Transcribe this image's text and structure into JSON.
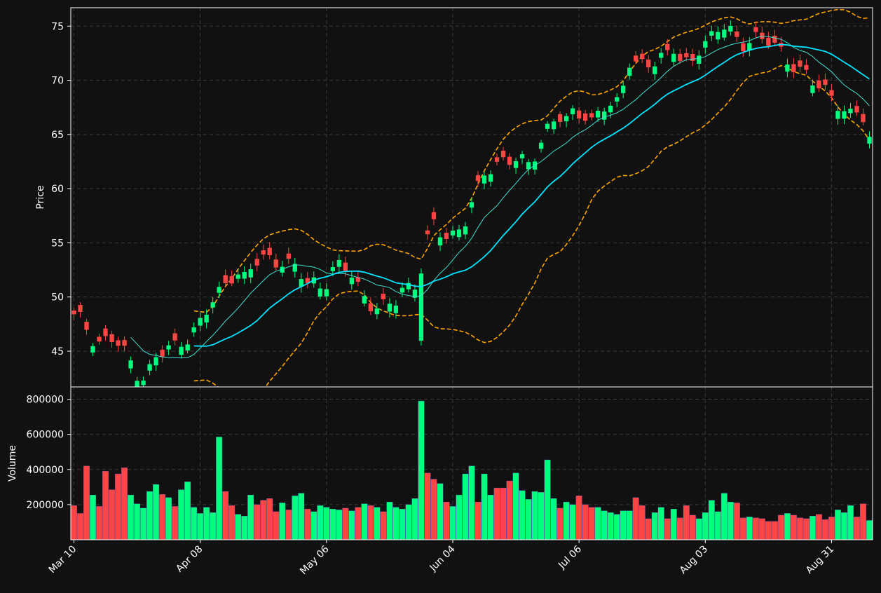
{
  "chart_data": [
    {
      "panel": "price",
      "type": "candlestick",
      "ylabel": "Price",
      "ylim": [
        41.7,
        76.7
      ],
      "yticks": [
        45,
        50,
        55,
        60,
        65,
        70,
        75
      ],
      "grid": true,
      "series": [
        {
          "kind": "ohlc",
          "color_up": "#00ff7f",
          "color_down": "#ff4444"
        },
        {
          "kind": "line",
          "color": "#40e0d0",
          "description_source": "moving average (thin)"
        },
        {
          "kind": "line",
          "color": "#00e5ff",
          "description_source": "moving average (thick)"
        },
        {
          "kind": "band-upper",
          "color": "#ffa500",
          "style": "dashed"
        },
        {
          "kind": "band-lower",
          "color": "#ffa500",
          "style": "dashed"
        }
      ],
      "key_prices": [
        48.1,
        47.8,
        46.3,
        45.8,
        46.2,
        45.5,
        44.5,
        43.1,
        42.5,
        44.2,
        44.8,
        45.4,
        46.0,
        46.4,
        47.4,
        48.8,
        50.1,
        51.6,
        52.3,
        51.5,
        52.8,
        53.6,
        53.8,
        53.2,
        52.8,
        52.6,
        51.3,
        51.6,
        50.9,
        52.3,
        52.9,
        52.3,
        50.9,
        49.4,
        48.7,
        49.1,
        49.8,
        51.3,
        50.8,
        52.6,
        57.0,
        56.1,
        55.6,
        56.2,
        57.0,
        59.6,
        61.8,
        62.2,
        62.6,
        62.4,
        62.5,
        62.5,
        64.0,
        65.5,
        66.5,
        66.1,
        67.4,
        67.0,
        66.0,
        67.3,
        67.5,
        68.2,
        72.0,
        71.4,
        71.2,
        71.5,
        72.5,
        73.4,
        71.5,
        71.2,
        72.8,
        74.0,
        75.0,
        75.1,
        73.5,
        73.0,
        74.3,
        74.0,
        73.6,
        72.4,
        71.4,
        71.3,
        70.8,
        69.5,
        68.8,
        68.2,
        67.5,
        67.0,
        67.3,
        64.2
      ]
    },
    {
      "panel": "volume",
      "type": "bar",
      "ylabel": "Volume",
      "ylim": [
        0,
        870000
      ],
      "yticks": [
        200000,
        400000,
        600000,
        800000
      ],
      "grid": true,
      "color_up": "#00ff7f",
      "color_down": "#ff4444",
      "values": [
        195000,
        150000,
        420000,
        255000,
        190000,
        390000,
        285000,
        375000,
        410000,
        255000,
        205000,
        180000,
        275000,
        315000,
        258000,
        240000,
        190000,
        285000,
        330000,
        185000,
        150000,
        185000,
        155000,
        585000,
        275000,
        195000,
        145000,
        135000,
        255000,
        200000,
        225000,
        235000,
        160000,
        210000,
        170000,
        250000,
        265000,
        175000,
        160000,
        195000,
        185000,
        175000,
        170000,
        180000,
        165000,
        185000,
        205000,
        195000,
        185000,
        160000,
        215000,
        185000,
        175000,
        200000,
        235000,
        790000,
        380000,
        345000,
        320000,
        215000,
        190000,
        255000,
        375000,
        420000,
        215000,
        375000,
        255000,
        295000,
        295000,
        335000,
        380000,
        280000,
        230000,
        275000,
        270000,
        455000,
        235000,
        180000,
        215000,
        200000,
        250000,
        200000,
        185000,
        185000,
        165000,
        155000,
        145000,
        165000,
        165000,
        240000,
        195000,
        120000,
        155000,
        185000,
        120000,
        175000,
        125000,
        195000,
        140000,
        120000,
        155000,
        225000,
        160000,
        265000,
        215000,
        210000,
        125000,
        130000,
        125000,
        120000,
        105000,
        105000,
        140000,
        150000,
        140000,
        125000,
        120000,
        135000,
        145000,
        115000,
        130000,
        170000,
        155000,
        195000,
        130000,
        205000,
        110000
      ],
      "up": [
        false,
        false,
        false,
        true,
        false,
        false,
        false,
        false,
        false,
        true,
        true,
        true,
        true,
        true,
        false,
        true,
        false,
        true,
        true,
        true,
        true,
        true,
        true,
        true,
        false,
        false,
        true,
        true,
        true,
        false,
        false,
        false,
        false,
        true,
        false,
        true,
        true,
        false,
        true,
        true,
        true,
        true,
        true,
        false,
        true,
        false,
        true,
        false,
        true,
        false,
        true,
        true,
        true,
        true,
        true,
        true,
        false,
        false,
        true,
        false,
        true,
        true,
        true,
        true,
        false,
        true,
        true,
        false,
        false,
        false,
        true,
        true,
        true,
        true,
        true,
        true,
        true,
        false,
        true,
        true,
        false,
        false,
        false,
        true,
        true,
        true,
        true,
        true,
        true,
        false,
        false,
        false,
        true,
        true,
        false,
        true,
        false,
        false,
        false,
        true,
        true,
        true,
        true,
        true,
        true,
        false,
        false,
        true,
        false,
        false,
        false,
        false,
        false,
        true,
        false,
        false,
        false,
        true,
        false,
        false,
        false,
        true,
        true,
        true,
        false,
        false,
        true
      ],
      "xtick_labels": [
        "Mar 10",
        "Apr 08",
        "May 06",
        "Jun 04",
        "Jul 06",
        "Aug 03",
        "Aug 31"
      ]
    }
  ]
}
